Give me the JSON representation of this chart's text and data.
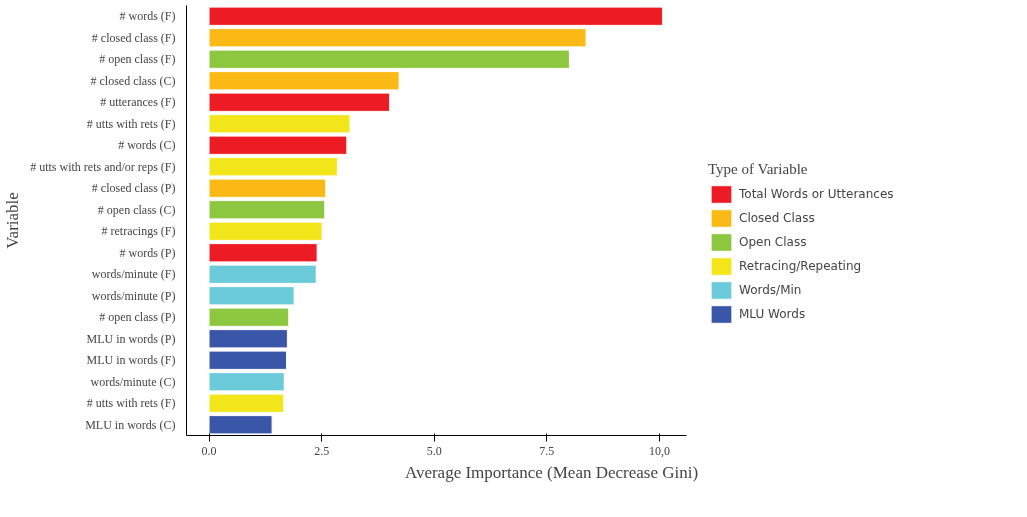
{
  "chart_data": {
    "type": "bar",
    "orientation": "horizontal",
    "xlabel": "Average Importance (Mean Decrease Gini)",
    "ylabel": "Variable",
    "legend_title": "Type of Variable",
    "legend": "right",
    "grid": false,
    "categories": [
      "# words (F)",
      "# closed class (F)",
      "# open class (F)",
      "# closed class (C)",
      "# utterances (F)",
      "# utts with rets (F)",
      "# words (C)",
      "# utts with rets and/or reps (F)",
      "# closed class (P)",
      "# open class (C)",
      "# retracings (F)",
      "# words (P)",
      "words/minute (F)",
      "words/minute (P)",
      "# open class (P)",
      "MLU in words (P)",
      "MLU in words (F)",
      "words/minute (C)",
      "# utts with rets (F)",
      "MLU in words (C)"
    ],
    "xlim": [
      -0.5,
      10.6
    ],
    "xticks": [
      {
        "value": 0,
        "label": "0.0"
      },
      {
        "value": 2.5,
        "label": "2.5"
      },
      {
        "value": 5,
        "label": "5.0"
      },
      {
        "value": 7.5,
        "label": "7.5"
      },
      {
        "value": 10,
        "label": "10,0"
      }
    ],
    "series": [
      {
        "name": "Total Words or Utterances",
        "color": "#ed1c24",
        "values": [
          10.07,
          null,
          null,
          null,
          4.01,
          null,
          3.06,
          null,
          null,
          null,
          null,
          2.4,
          null,
          null,
          null,
          null,
          null,
          null,
          null,
          null
        ]
      },
      {
        "name": "Closed Class",
        "color": "#fbb915",
        "values": [
          null,
          8.37,
          null,
          4.22,
          null,
          null,
          null,
          null,
          2.59,
          null,
          null,
          null,
          null,
          null,
          null,
          null,
          null,
          null,
          null,
          null
        ]
      },
      {
        "name": "Open Class",
        "color": "#8dc63f",
        "values": [
          null,
          null,
          8.0,
          null,
          null,
          null,
          null,
          null,
          null,
          2.57,
          null,
          null,
          null,
          null,
          1.77,
          null,
          null,
          null,
          null,
          null
        ]
      },
      {
        "name": "Retracing/Repeating",
        "color": "#f2e61a",
        "values": [
          null,
          null,
          null,
          null,
          null,
          3.13,
          null,
          2.85,
          null,
          null,
          2.51,
          null,
          null,
          null,
          null,
          null,
          null,
          null,
          1.66,
          null
        ]
      },
      {
        "name": "Words/Min",
        "color": "#6ccbdb",
        "values": [
          null,
          null,
          null,
          null,
          null,
          null,
          null,
          null,
          null,
          null,
          null,
          null,
          2.38,
          1.89,
          null,
          null,
          null,
          1.67,
          null,
          null
        ]
      },
      {
        "name": "MLU Words",
        "color": "#3a56a8",
        "values": [
          null,
          null,
          null,
          null,
          null,
          null,
          null,
          null,
          null,
          null,
          null,
          null,
          null,
          null,
          null,
          1.74,
          1.72,
          null,
          null,
          1.4
        ]
      }
    ]
  }
}
